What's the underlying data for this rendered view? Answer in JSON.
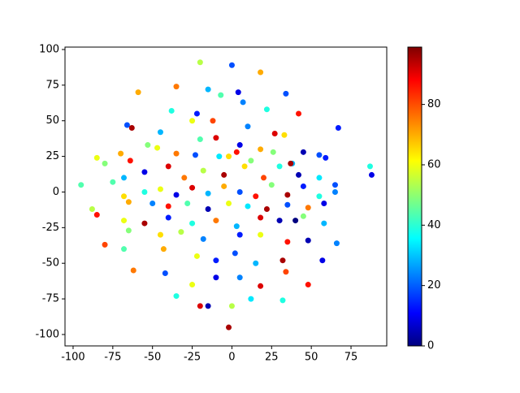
{
  "chart_data": {
    "type": "scatter",
    "colormap": "jet",
    "x": [
      -20,
      0,
      18,
      34,
      4,
      -35,
      -15,
      -7,
      7,
      -59,
      22,
      42,
      -66,
      -63,
      -38,
      -22,
      -25,
      -45,
      -12,
      10,
      27,
      33,
      67,
      -53,
      -20,
      -10,
      5,
      18,
      26,
      45,
      55,
      -85,
      -80,
      -70,
      -64,
      -47,
      -35,
      -23,
      -8,
      3,
      12,
      38,
      59,
      87,
      88,
      -95,
      -75,
      -68,
      -55,
      -40,
      -30,
      -18,
      -5,
      8,
      20,
      30,
      42,
      55,
      65,
      -55,
      -45,
      -35,
      -25,
      -15,
      -5,
      5,
      15,
      25,
      35,
      45,
      55,
      65,
      -65,
      -68,
      -50,
      -40,
      -28,
      -15,
      -2,
      10,
      22,
      35,
      48,
      58,
      -88,
      -85,
      -68,
      -55,
      -40,
      -25,
      -10,
      3,
      18,
      30,
      45,
      58,
      -80,
      -65,
      -45,
      -32,
      -18,
      5,
      18,
      35,
      48,
      66,
      -68,
      -43,
      -22,
      -10,
      2,
      15,
      32,
      57,
      -62,
      -42,
      -25,
      -10,
      5,
      18,
      34,
      48,
      -35,
      -20,
      -15,
      0,
      12,
      32,
      -2,
      37,
      40,
      -2
    ],
    "y": [
      91,
      89,
      84,
      69,
      70,
      74,
      72,
      68,
      63,
      70,
      58,
      55,
      47,
      45,
      57,
      55,
      50,
      42,
      50,
      46,
      41,
      40,
      45,
      33,
      37,
      38,
      33,
      30,
      28,
      28,
      26,
      24,
      20,
      27,
      22,
      31,
      27,
      26,
      25,
      28,
      22,
      20,
      24,
      18,
      12,
      5,
      7,
      10,
      14,
      18,
      10,
      15,
      12,
      18,
      10,
      18,
      12,
      10,
      5,
      0,
      2,
      -2,
      3,
      -1,
      4,
      0,
      -3,
      5,
      -2,
      4,
      -3,
      0,
      -7,
      -3,
      -8,
      -10,
      -8,
      -12,
      -8,
      -10,
      -12,
      -9,
      -11,
      -8,
      -12,
      -16,
      -20,
      -22,
      -18,
      -22,
      -20,
      -24,
      -18,
      -20,
      -17,
      -22,
      -37,
      -27,
      -30,
      -28,
      -33,
      -30,
      -30,
      -35,
      -34,
      -36,
      -40,
      -40,
      -45,
      -48,
      -43,
      -50,
      -48,
      -48,
      -55,
      -57,
      -65,
      -60,
      -60,
      -66,
      -56,
      -65,
      -73,
      -80,
      -80,
      -80,
      -75,
      -76,
      -95,
      20,
      -20,
      25
    ],
    "c": [
      55,
      20,
      70,
      20,
      10,
      75,
      30,
      45,
      25,
      70,
      40,
      85,
      20,
      95,
      40,
      15,
      60,
      30,
      80,
      25,
      90,
      65,
      15,
      50,
      45,
      90,
      10,
      70,
      50,
      5,
      20,
      60,
      50,
      70,
      85,
      60,
      75,
      20,
      35,
      85,
      50,
      30,
      15,
      40,
      10,
      45,
      45,
      30,
      10,
      90,
      75,
      55,
      95,
      65,
      80,
      40,
      5,
      35,
      20,
      40,
      60,
      10,
      90,
      30,
      70,
      20,
      85,
      50,
      95,
      15,
      40,
      25,
      70,
      65,
      25,
      85,
      45,
      5,
      60,
      35,
      95,
      20,
      75,
      10,
      55,
      85,
      60,
      95,
      15,
      40,
      75,
      30,
      90,
      5,
      50,
      30,
      80,
      50,
      65,
      55,
      25,
      15,
      60,
      85,
      5,
      25,
      45,
      70,
      60,
      15,
      20,
      30,
      95,
      10,
      75,
      20,
      60,
      10,
      25,
      90,
      80,
      85,
      40,
      90,
      5,
      55,
      35,
      40,
      95,
      95,
      0,
      65
    ],
    "xlim": [
      -105.1,
      97.5
    ],
    "ylim": [
      -108,
      101.7
    ],
    "xticks": [
      -100,
      -75,
      -50,
      -25,
      0,
      25,
      50,
      75
    ],
    "yticks": [
      -100,
      -75,
      -50,
      -25,
      0,
      25,
      50,
      75,
      100
    ],
    "clim": [
      0,
      99
    ],
    "cticks": [
      0,
      20,
      40,
      60,
      80
    ]
  }
}
